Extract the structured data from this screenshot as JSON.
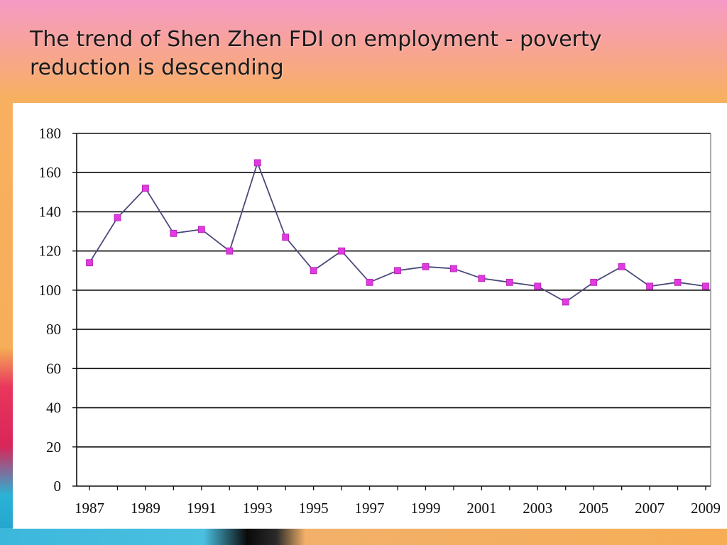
{
  "slide": {
    "title": "The trend of Shen Zhen FDI on employment -  poverty reduction is descending"
  },
  "colors": {
    "line": "#4a4a7a",
    "marker": "#e03ae0",
    "grid": "#111111"
  },
  "chart_data": {
    "type": "line",
    "title": "",
    "xlabel": "",
    "ylabel": "",
    "x": [
      1987,
      1988,
      1989,
      1990,
      1991,
      1992,
      1993,
      1994,
      1995,
      1996,
      1997,
      1998,
      1999,
      2000,
      2001,
      2002,
      2003,
      2004,
      2005,
      2006,
      2007,
      2008,
      2009
    ],
    "x_tick_labels": [
      "1987",
      "1989",
      "1991",
      "1993",
      "1995",
      "1997",
      "1999",
      "2001",
      "2003",
      "2005",
      "2007",
      "2009"
    ],
    "y_ticks": [
      0,
      20,
      40,
      60,
      80,
      100,
      120,
      140,
      160,
      180
    ],
    "ylim": [
      0,
      180
    ],
    "grid": true,
    "legend": "none",
    "series": [
      {
        "values": [
          114,
          137,
          152,
          129,
          131,
          120,
          165,
          127,
          110,
          120,
          104,
          110,
          112,
          111,
          106,
          104,
          102,
          94,
          104,
          112,
          102,
          104,
          102
        ]
      }
    ]
  }
}
